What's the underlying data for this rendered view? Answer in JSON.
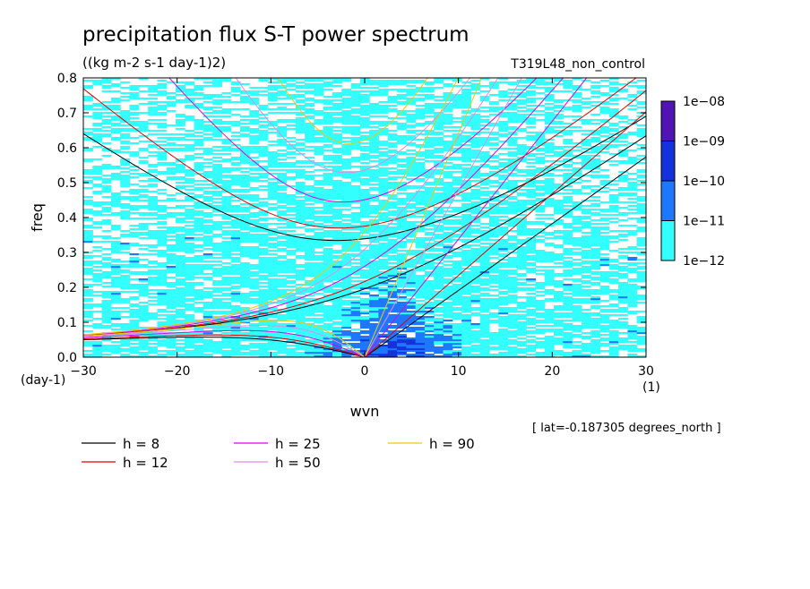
{
  "chart_data": {
    "type": "heatmap",
    "title": "precipitation flux S-T power spectrum",
    "units": "((kg m-2 s-1 day-1)2)",
    "run_label": "T319L48_non_control",
    "xlabel": "wvn",
    "ylabel": "freq",
    "x_unit_label": "(1)",
    "y_unit_label": "(day-1)",
    "xlim": [
      -30,
      30
    ],
    "ylim": [
      0,
      0.8
    ],
    "x_ticks": [
      "-30",
      "-20",
      "-10",
      "0",
      "10",
      "20",
      "30"
    ],
    "y_ticks": [
      "0.0",
      "0.1",
      "0.2",
      "0.3",
      "0.4",
      "0.5",
      "0.6",
      "0.7",
      "0.8"
    ],
    "colorbar": {
      "levels": [
        "1e-12",
        "1e-11",
        "1e-10",
        "1e-09",
        "1e-08"
      ],
      "colors": [
        "#33ffff",
        "#1e78ff",
        "#1432dc",
        "#0f0fb4",
        "#5014b4"
      ]
    },
    "dispersion_curves": [
      {
        "name": "h =  8",
        "h": 8,
        "color": "#000000"
      },
      {
        "name": "h = 12",
        "h": 12,
        "color": "#e00000"
      },
      {
        "name": "h = 25",
        "h": 25,
        "color": "#e000e0"
      },
      {
        "name": "h = 50",
        "h": 50,
        "color": "#e08ce0"
      },
      {
        "name": "h = 90",
        "h": 90,
        "color": "#f0c800"
      }
    ],
    "annotation": "[ lat=-0.187305 degrees_north ]"
  }
}
